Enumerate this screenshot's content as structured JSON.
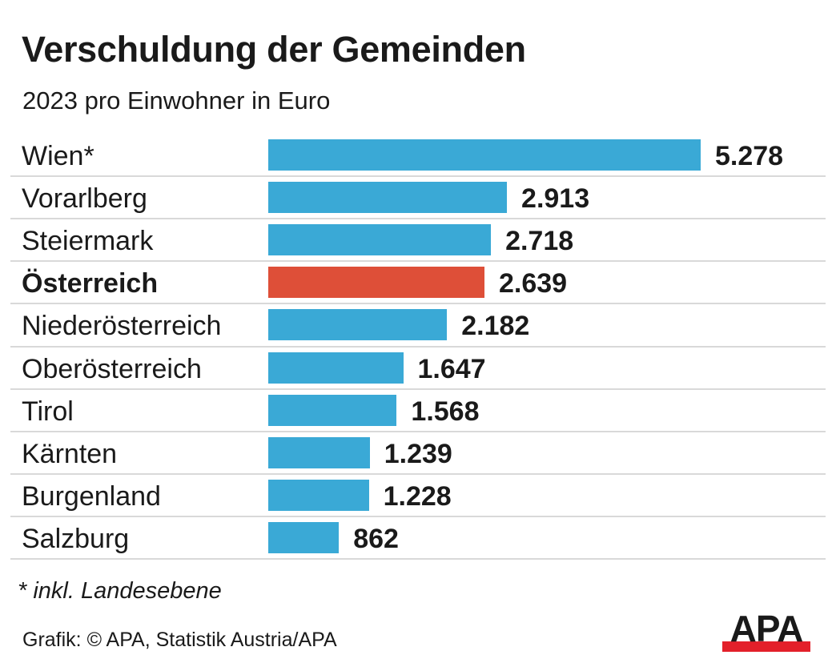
{
  "chart_data": {
    "type": "bar",
    "orientation": "horizontal",
    "title": "Verschuldung der Gemeinden",
    "subtitle": "2023 pro Einwohner in Euro",
    "categories": [
      "Wien*",
      "Vorarlberg",
      "Steiermark",
      "Österreich",
      "Niederösterreich",
      "Oberösterreich",
      "Tirol",
      "Kärnten",
      "Burgenland",
      "Salzburg"
    ],
    "values": [
      5278,
      2913,
      2718,
      2639,
      2182,
      1647,
      1568,
      1239,
      1228,
      862
    ],
    "value_labels": [
      "5.278",
      "2.913",
      "2.718",
      "2.639",
      "2.182",
      "1.647",
      "1.568",
      "1.239",
      "1.228",
      "862"
    ],
    "highlight": "Österreich",
    "colors": {
      "bar": "#3aa9d6",
      "highlight": "#de4f38"
    },
    "xlim": [
      0,
      5278
    ],
    "grid": false,
    "note": "* inkl. Landesebene",
    "source": "Grafik: © APA, Statistik Austria/APA"
  },
  "logo": {
    "text": "APA",
    "colors": {
      "text": "#1a1a1a",
      "bar": "#e3202a"
    }
  }
}
